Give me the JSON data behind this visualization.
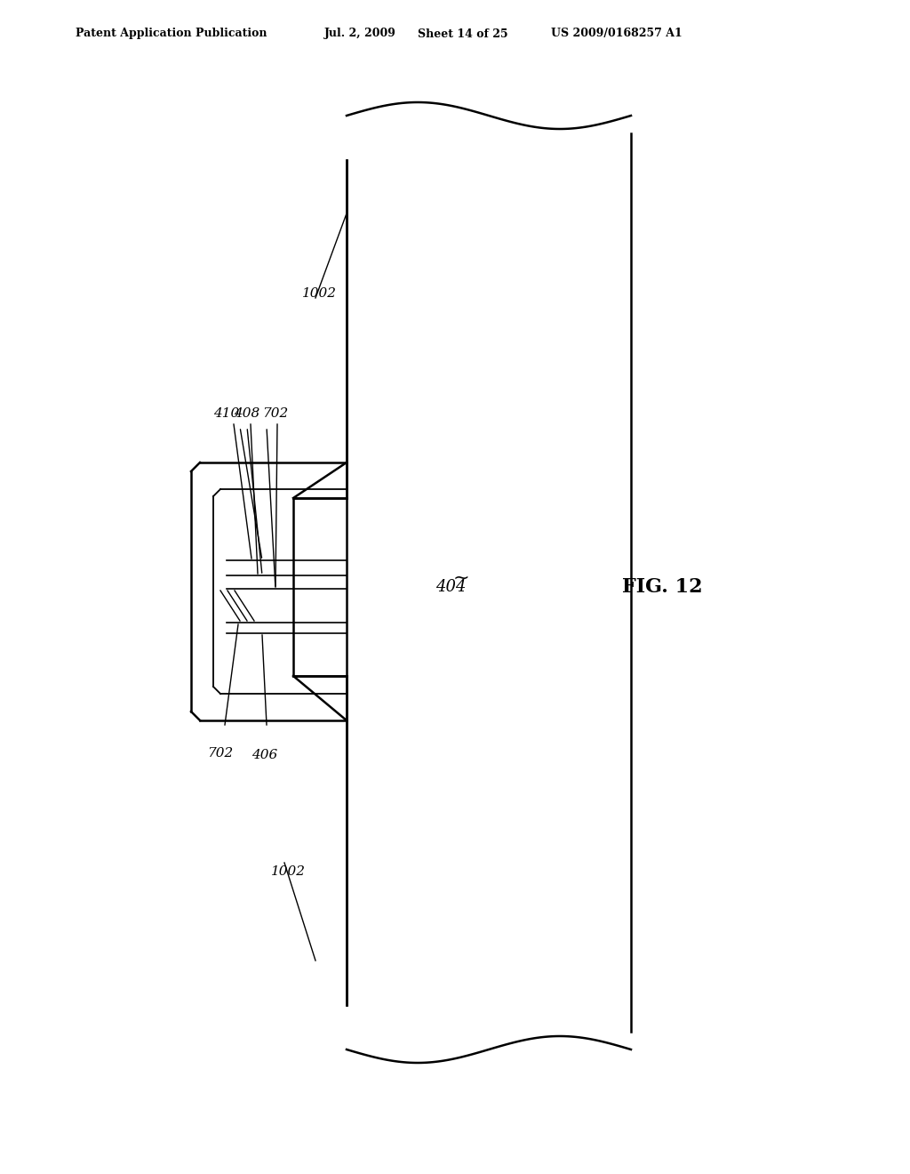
{
  "bg_color": "#ffffff",
  "line_color": "#000000",
  "header_text": "Patent Application Publication",
  "header_date": "Jul. 2, 2009",
  "header_sheet": "Sheet 14 of 25",
  "header_patent": "US 2009/0168257 A1",
  "fig_label": "FIG. 12",
  "labels": {
    "1002_top": "1002",
    "1002_bot": "1002",
    "410": "410",
    "408": "408",
    "702_top": "702",
    "702_bot": "702",
    "406": "406",
    "404": "404"
  }
}
